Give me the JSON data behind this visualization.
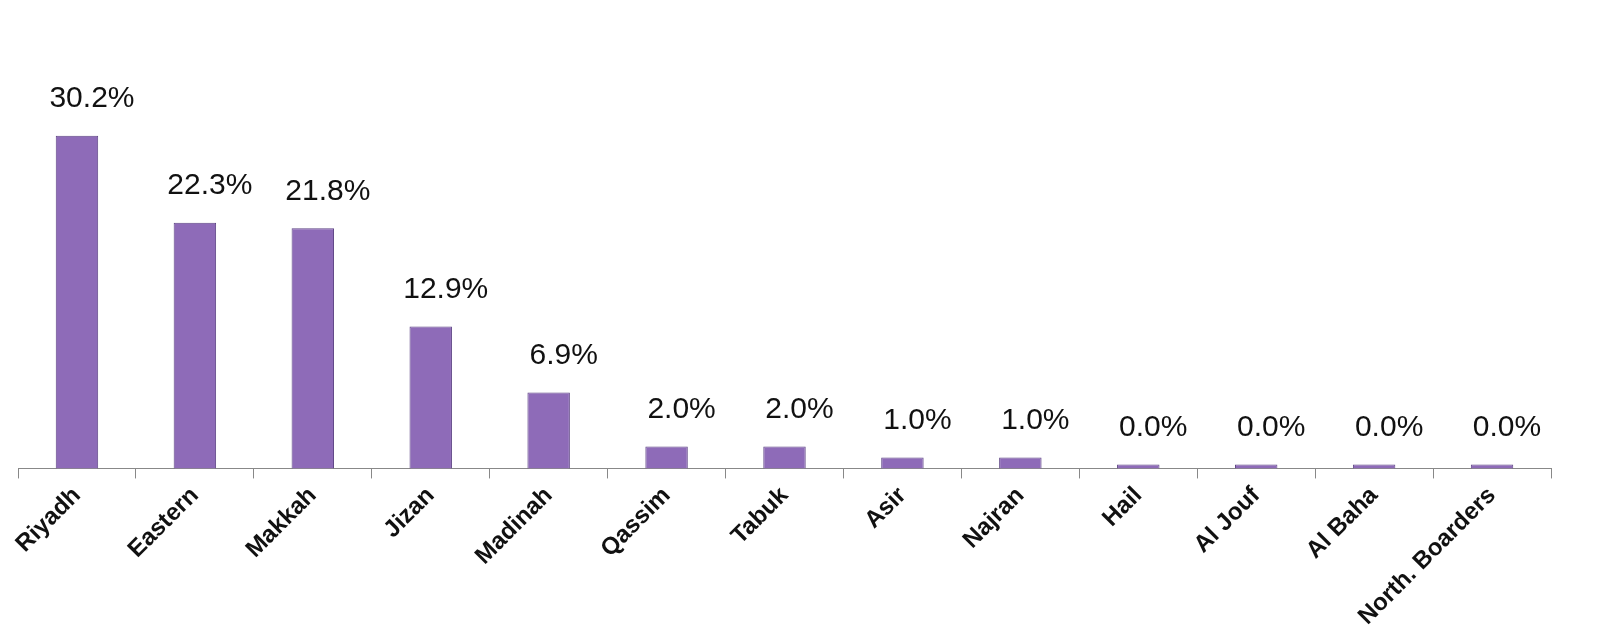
{
  "chart_data": {
    "type": "bar",
    "categories": [
      "Riyadh",
      "Eastern",
      "Makkah",
      "Jizan",
      "Madinah",
      "Qassim",
      "Tabuk",
      "Asir",
      "Najran",
      "Hail",
      "Al Jouf",
      "Al Baha",
      "North. Boarders"
    ],
    "values": [
      30.2,
      22.3,
      21.8,
      12.9,
      6.9,
      2.0,
      2.0,
      1.0,
      1.0,
      0.0,
      0.0,
      0.0,
      0.0
    ],
    "value_labels": [
      "30.2%",
      "22.3%",
      "21.8%",
      "12.9%",
      "6.9%",
      "2.0%",
      "2.0%",
      "1.0%",
      "1.0%",
      "0.0%",
      "0.0%",
      "0.0%",
      "0.0%"
    ],
    "color": "#8e6bb8",
    "grid": false,
    "legend": false
  }
}
